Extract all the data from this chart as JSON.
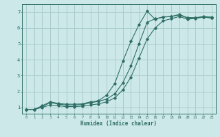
{
  "xlabel": "Humidex (Indice chaleur)",
  "bg_color": "#cce8e8",
  "grid_color": "#aacccc",
  "line_color": "#2e6e65",
  "xlim": [
    -0.5,
    23.5
  ],
  "ylim": [
    0.6,
    7.5
  ],
  "xticks": [
    0,
    1,
    2,
    3,
    4,
    5,
    6,
    7,
    8,
    9,
    10,
    11,
    12,
    13,
    14,
    15,
    16,
    17,
    18,
    19,
    20,
    21,
    22,
    23
  ],
  "yticks": [
    1,
    2,
    3,
    4,
    5,
    6,
    7
  ],
  "line1_x": [
    0,
    1,
    2,
    3,
    4,
    5,
    6,
    7,
    8,
    9,
    10,
    11,
    12,
    13,
    14,
    15,
    16,
    17,
    18,
    19,
    20,
    21,
    22,
    23
  ],
  "line1_y": [
    0.87,
    0.87,
    1.1,
    1.35,
    1.25,
    1.2,
    1.2,
    1.22,
    1.35,
    1.42,
    1.78,
    2.5,
    3.9,
    5.15,
    6.2,
    7.05,
    6.55,
    6.7,
    6.72,
    6.85,
    6.65,
    6.65,
    6.72,
    6.68
  ],
  "line2_x": [
    0,
    1,
    2,
    3,
    4,
    5,
    6,
    7,
    8,
    9,
    10,
    11,
    12,
    13,
    14,
    15,
    16,
    17,
    18,
    19,
    20,
    21,
    22,
    23
  ],
  "line2_y": [
    0.87,
    0.87,
    1.05,
    1.3,
    1.2,
    1.15,
    1.15,
    1.18,
    1.28,
    1.38,
    1.52,
    1.85,
    2.55,
    3.6,
    5.0,
    6.35,
    6.58,
    6.68,
    6.72,
    6.82,
    6.62,
    6.62,
    6.7,
    6.65
  ],
  "line3_x": [
    0,
    1,
    2,
    3,
    4,
    5,
    6,
    7,
    8,
    9,
    10,
    11,
    12,
    13,
    14,
    15,
    16,
    17,
    18,
    19,
    20,
    21,
    22,
    23
  ],
  "line3_y": [
    0.87,
    0.87,
    1.0,
    1.15,
    1.1,
    1.05,
    1.05,
    1.08,
    1.15,
    1.22,
    1.35,
    1.6,
    2.1,
    2.9,
    4.1,
    5.3,
    6.0,
    6.45,
    6.58,
    6.72,
    6.55,
    6.6,
    6.68,
    6.62
  ]
}
